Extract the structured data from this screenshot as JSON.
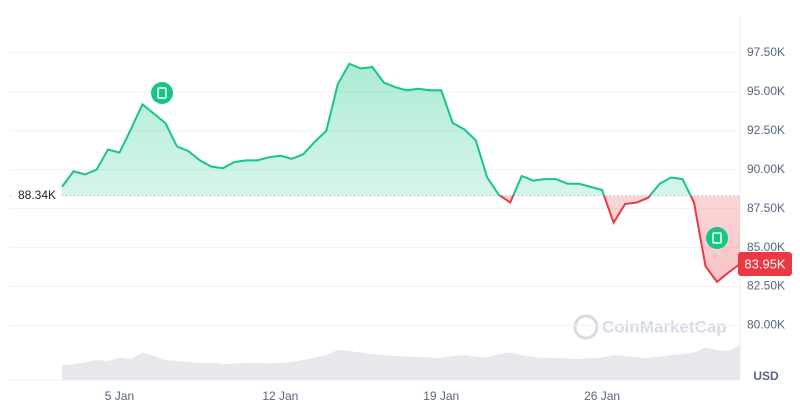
{
  "chart_data": {
    "type": "line",
    "categories": [
      null,
      null,
      null,
      null,
      null,
      "5 Jan",
      null,
      null,
      null,
      null,
      null,
      null,
      null,
      null,
      null,
      null,
      null,
      null,
      null,
      "12 Jan",
      null,
      null,
      null,
      null,
      null,
      null,
      null,
      null,
      null,
      null,
      null,
      null,
      null,
      "19 Jan",
      null,
      null,
      null,
      null,
      null,
      null,
      null,
      null,
      null,
      null,
      null,
      null,
      null,
      "26 Jan",
      null,
      null,
      null,
      null,
      null,
      null,
      null,
      null,
      null,
      null,
      null,
      null
    ],
    "series": [
      {
        "name": "Price",
        "color": "#16c784",
        "values": [
          88900,
          89900,
          89700,
          90000,
          91300,
          91100,
          92600,
          94200,
          93600,
          93000,
          91500,
          91200,
          90600,
          90200,
          90100,
          90500,
          90600,
          90600,
          90800,
          90900,
          90700,
          91000,
          91800,
          92500,
          95500,
          96800,
          96500,
          96600,
          95600,
          95300,
          95100,
          95200,
          95100,
          95100,
          93000,
          92600,
          91900,
          89500,
          88400,
          87900,
          89600,
          89300,
          89400,
          89400,
          89100,
          89100,
          88900,
          88700,
          86600,
          87800,
          87900,
          88200,
          89100,
          89500,
          89400,
          87900,
          83800,
          82800,
          83400,
          83950
        ]
      },
      {
        "name": "Volume",
        "color": "#e6e8ec",
        "axis": "y2",
        "values": [
          30,
          32,
          35,
          40,
          38,
          45,
          42,
          55,
          48,
          40,
          38,
          36,
          34,
          35,
          32,
          33,
          34,
          35,
          33,
          34,
          36,
          40,
          45,
          50,
          60,
          58,
          55,
          52,
          50,
          48,
          47,
          46,
          45,
          44,
          48,
          50,
          47,
          45,
          52,
          55,
          50,
          46,
          44,
          45,
          43,
          42,
          44,
          45,
          50,
          48,
          46,
          44,
          47,
          50,
          52,
          55,
          65,
          60,
          58,
          70
        ]
      }
    ],
    "below_color": "#ea3943",
    "ylim": [
      76500,
      100000
    ],
    "yticks": [
      {
        "value": 80000,
        "label": "80.00K"
      },
      {
        "value": 82500,
        "label": "82.50K"
      },
      {
        "value": 85000,
        "label": "85.00K"
      },
      {
        "value": 87500,
        "label": "87.50K"
      },
      {
        "value": 90000,
        "label": "90.00K"
      },
      {
        "value": 92500,
        "label": "92.50K"
      },
      {
        "value": 95000,
        "label": "95.00K"
      },
      {
        "value": 97500,
        "label": "97.50K"
      }
    ],
    "y2lim": [
      0,
      100
    ],
    "baseline": {
      "value": 88340,
      "label": "88.34K"
    },
    "last_price": {
      "value": 83950,
      "label": "83.95K"
    },
    "currency": "USD",
    "watermark": "CoinMarketCap",
    "grid": true
  }
}
